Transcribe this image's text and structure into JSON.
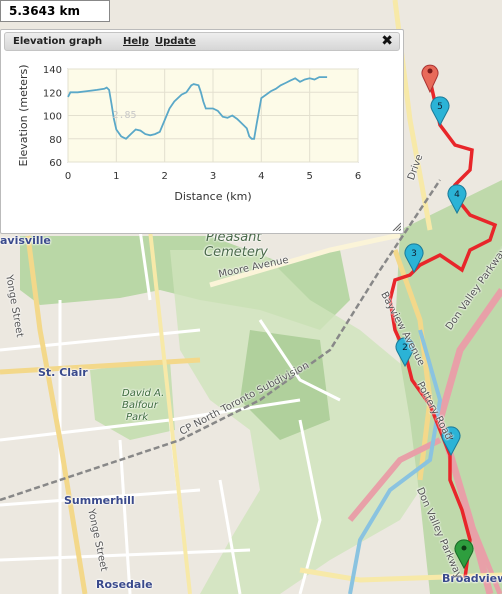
{
  "distance": {
    "value": "5.3643 km"
  },
  "panel": {
    "title": "Elevation graph",
    "help": "Help",
    "update": "Update",
    "close": "✖"
  },
  "chart_data": {
    "type": "line",
    "title": "",
    "xlabel": "Distance (km)",
    "ylabel": "Elevation (meters)",
    "xlim": [
      0,
      6
    ],
    "ylim": [
      60,
      140
    ],
    "xticks": [
      0,
      1,
      2,
      3,
      4,
      5,
      6
    ],
    "yticks": [
      60,
      80,
      100,
      120,
      140
    ],
    "grid": true,
    "hover_label": "2.85",
    "series": [
      {
        "x": [
          0,
          0.05,
          0.2,
          0.4,
          0.6,
          0.75,
          0.8,
          0.85,
          0.9,
          0.95,
          1.0,
          1.1,
          1.2,
          1.3,
          1.4,
          1.5,
          1.6,
          1.7,
          1.8,
          1.9,
          2.0,
          2.1,
          2.2,
          2.35,
          2.45,
          2.55,
          2.6,
          2.7,
          2.75,
          2.8,
          2.85,
          3.0,
          3.1,
          3.2,
          3.3,
          3.4,
          3.5,
          3.6,
          3.7,
          3.75,
          3.8,
          3.85,
          3.9,
          4.0,
          4.1,
          4.2,
          4.3,
          4.4,
          4.5,
          4.6,
          4.7,
          4.8,
          4.9,
          5.0,
          5.1,
          5.2,
          5.3,
          5.36
        ],
        "y": [
          116,
          120,
          120,
          121,
          122,
          123,
          124,
          122,
          110,
          97,
          88,
          82,
          80,
          84,
          88,
          87,
          84,
          83,
          84,
          86,
          96,
          106,
          112,
          118,
          120,
          126,
          127,
          126,
          120,
          112,
          106,
          106,
          104,
          99,
          98,
          100,
          97,
          93,
          89,
          82,
          80,
          80,
          92,
          115,
          118,
          121,
          123,
          126,
          128,
          130,
          132,
          129,
          131,
          132,
          131,
          133,
          133,
          133
        ]
      }
    ]
  },
  "labels": {
    "davisville": "avisville",
    "yonge_street_top": "Yonge Street",
    "yonge_street_bottom": "Yonge Street",
    "st_clair": "St. Clair",
    "summerhill": "Summerhill",
    "rosedale": "Rosedale",
    "broadview": "Broadview",
    "pleasant_cemetery_1": "Pleasant",
    "pleasant_cemetery_2": "Cemetery",
    "moore_avenue": "Moore Avenue",
    "balfour_1": "David A.",
    "balfour_2": "Balfour",
    "balfour_3": "Park",
    "cp_north": "CP North Toronto Subdivision",
    "bayview": "Bayview Avenue",
    "don_valley_1": "Don Valley Parkway",
    "don_valley_2": "Don Valley Parkway",
    "pottery_road": "Pottery Road",
    "drive": "Drive"
  },
  "markers": [
    {
      "label": "5",
      "color": "#2bb3d6"
    },
    {
      "label": "4",
      "color": "#2bb3d6"
    },
    {
      "label": "3",
      "color": "#2bb3d6"
    },
    {
      "label": "2",
      "color": "#2bb3d6"
    },
    {
      "label": "1",
      "color": "#2bb3d6"
    }
  ],
  "colors": {
    "route": "#e8262a",
    "start_marker": "#2e9e3e",
    "end_marker": "#e86a5a",
    "chart_line": "#5aa8c8",
    "chart_bg": "#fdfbe8"
  }
}
